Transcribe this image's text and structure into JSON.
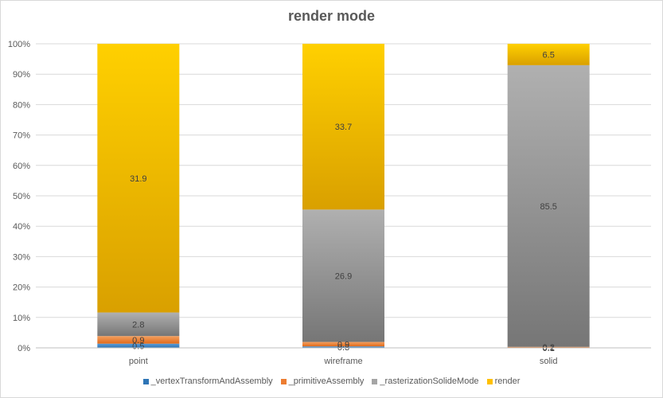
{
  "chart_data": {
    "type": "bar",
    "stacked": "percent",
    "title": "render mode",
    "categories": [
      "point",
      "wireframe",
      "solid"
    ],
    "ylim": [
      0,
      100
    ],
    "yticks": [
      "0%",
      "10%",
      "20%",
      "30%",
      "40%",
      "50%",
      "60%",
      "70%",
      "80%",
      "90%",
      "100%"
    ],
    "gridlines": true,
    "legend_position": "bottom",
    "series": [
      {
        "name": "_vertexTransformAndAssembly",
        "values": [
          0.5,
          0.3,
          0.1
        ],
        "labels": [
          "0.5",
          "0.3",
          "0.1"
        ],
        "color": "#2e75b6"
      },
      {
        "name": "_primitiveAssembly",
        "values": [
          0.9,
          0.9,
          0.2
        ],
        "labels": [
          "0.9",
          "0.9",
          "0.2"
        ],
        "color": "#ed7d31"
      },
      {
        "name": "_rasterizationSolideMode",
        "values": [
          2.8,
          26.9,
          85.5
        ],
        "labels": [
          "2.8",
          "26.9",
          "85.5"
        ],
        "color": "#a5a5a5"
      },
      {
        "name": "render",
        "values": [
          31.9,
          33.7,
          6.5
        ],
        "labels": [
          "31.9",
          "33.7",
          "6.5"
        ],
        "color": "#ffc000"
      }
    ]
  }
}
